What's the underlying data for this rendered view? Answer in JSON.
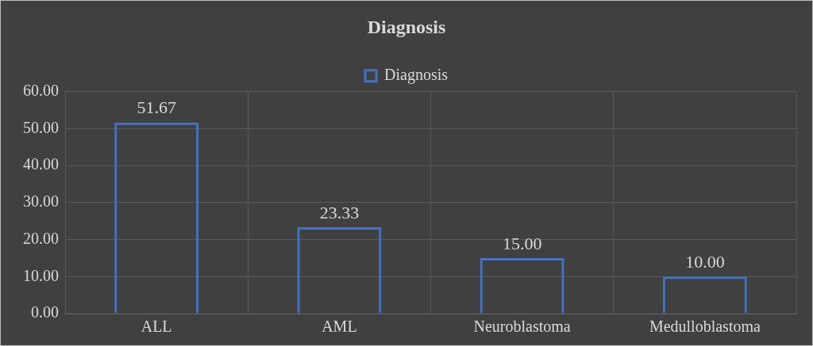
{
  "chart_data": {
    "type": "bar",
    "title": "Diagnosis",
    "categories": [
      "ALL",
      "AML",
      "Neuroblastoma",
      "Medulloblastoma"
    ],
    "series": [
      {
        "name": "Diagnosis",
        "color": "#4472c4",
        "values": [
          51.67,
          23.33,
          15.0,
          10.0
        ],
        "value_labels": [
          "51.67",
          "23.33",
          "15.00",
          "10.00"
        ]
      }
    ],
    "ylim": [
      0,
      60
    ],
    "yticks": [
      {
        "value": 0,
        "label": "0.00"
      },
      {
        "value": 10,
        "label": "10.00"
      },
      {
        "value": 20,
        "label": "20.00"
      },
      {
        "value": 30,
        "label": "30.00"
      },
      {
        "value": 40,
        "label": "40.00"
      },
      {
        "value": 50,
        "label": "50.00"
      },
      {
        "value": 60,
        "label": "60.00"
      }
    ],
    "grid": true,
    "legend": "top"
  }
}
